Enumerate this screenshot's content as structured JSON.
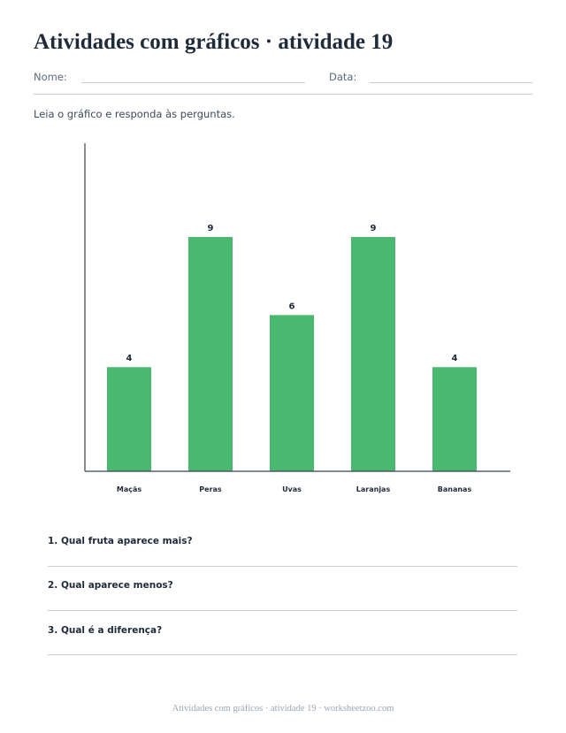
{
  "header": {
    "title": "Atividades com gráficos · atividade 19",
    "name_label": "Nome:",
    "date_label": "Data:"
  },
  "instructions": "Leia o gráfico e responda às perguntas.",
  "chart_data": {
    "type": "bar",
    "categories": [
      "Maçãs",
      "Peras",
      "Uvas",
      "Laranjas",
      "Bananas"
    ],
    "values": [
      4,
      9,
      6,
      9,
      4
    ],
    "data_labels": [
      "4",
      "9",
      "6",
      "9",
      "4"
    ],
    "ylim": [
      0,
      12.6
    ],
    "bar_color": "#4ab870",
    "axis_color": "#3a4350",
    "grid": false
  },
  "questions": [
    "1. Qual fruta aparece mais?",
    "2. Qual aparece menos?",
    "3. Qual é a diferença?"
  ],
  "footer": "Atividades com gráficos · atividade 19 · worksheetzoo.com"
}
